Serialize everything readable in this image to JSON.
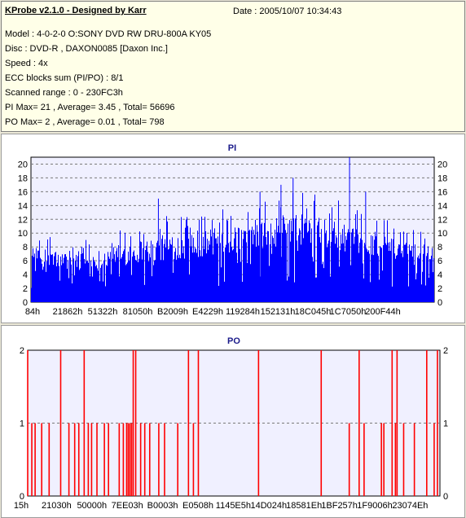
{
  "header": {
    "app_title": "KProbe v2.1.0 - Designed by Karr",
    "date": "Date : 2005/10/07 10:34:43",
    "lines": [
      "Model : 4-0-2-0 O:SONY    DVD RW DRU-800A  KY05",
      "Disc : DVD-R , DAXON0085 [Daxon Inc.]",
      "Speed : 4x",
      "ECC blocks sum (PI/PO) : 8/1",
      "Scanned range : 0 - 230FC3h",
      "PI Max= 21 , Average= 3.45 , Total= 56696",
      "PO Max= 2 , Average= 0.01 , Total= 798"
    ]
  },
  "colors": {
    "pi": "#0000ff",
    "po": "#ff0000",
    "plot_bg": "#f0f0ff",
    "grid": "#7a7a7a"
  },
  "chart_data": [
    {
      "type": "bar",
      "title": "PI",
      "ylim": [
        0,
        21
      ],
      "yticks": [
        0,
        2,
        4,
        6,
        8,
        10,
        12,
        14,
        16,
        18,
        20
      ],
      "xticklabels": [
        "84h",
        "21862h",
        "51322h",
        "81050h",
        "B2009h",
        "E4229h",
        "119284h",
        "152131h",
        "18C045h",
        "1C7050h",
        "200F44h"
      ],
      "grid": true,
      "summary": {
        "max": 21,
        "average": 3.45,
        "total": 56696
      },
      "envelope": [
        {
          "x": 0.0,
          "base": 5.5,
          "peak": 9
        },
        {
          "x": 0.04,
          "base": 5.0,
          "peak": 10
        },
        {
          "x": 0.1,
          "base": 4.5,
          "peak": 9
        },
        {
          "x": 0.18,
          "base": 5.0,
          "peak": 10
        },
        {
          "x": 0.26,
          "base": 5.5,
          "peak": 12
        },
        {
          "x": 0.34,
          "base": 6.0,
          "peak": 13
        },
        {
          "x": 0.42,
          "base": 6.5,
          "peak": 14
        },
        {
          "x": 0.5,
          "base": 7.0,
          "peak": 14
        },
        {
          "x": 0.58,
          "base": 7.5,
          "peak": 15
        },
        {
          "x": 0.64,
          "base": 8.5,
          "peak": 17
        },
        {
          "x": 0.7,
          "base": 8.0,
          "peak": 16
        },
        {
          "x": 0.76,
          "base": 7.5,
          "peak": 15
        },
        {
          "x": 0.82,
          "base": 7.0,
          "peak": 13
        },
        {
          "x": 0.88,
          "base": 6.5,
          "peak": 12
        },
        {
          "x": 0.94,
          "base": 6.5,
          "peak": 11
        },
        {
          "x": 1.0,
          "base": 6.0,
          "peak": 10
        }
      ],
      "spikes": [
        {
          "x": 0.316,
          "value": 15
        },
        {
          "x": 0.568,
          "value": 16
        },
        {
          "x": 0.62,
          "value": 17
        },
        {
          "x": 0.65,
          "value": 18
        },
        {
          "x": 0.79,
          "value": 21
        },
        {
          "x": 0.83,
          "value": 16
        }
      ]
    },
    {
      "type": "bar",
      "title": "PO",
      "ylim": [
        0,
        2
      ],
      "yticks": [
        0,
        1,
        2
      ],
      "xticklabels": [
        "15h",
        "21030h",
        "50000h",
        "7EE03h",
        "B0003h",
        "E0508h",
        "1145E5h",
        "14D024h",
        "18581Eh",
        "1BF257h",
        "1F9006h",
        "23074Eh"
      ],
      "grid": true,
      "summary": {
        "max": 2,
        "average": 0.01,
        "total": 798
      },
      "spikes": [
        {
          "x": 0.0,
          "value": 2
        },
        {
          "x": 0.01,
          "value": 1
        },
        {
          "x": 0.018,
          "value": 1
        },
        {
          "x": 0.034,
          "value": 1
        },
        {
          "x": 0.052,
          "value": 1
        },
        {
          "x": 0.08,
          "value": 2
        },
        {
          "x": 0.1,
          "value": 1
        },
        {
          "x": 0.114,
          "value": 1
        },
        {
          "x": 0.124,
          "value": 1
        },
        {
          "x": 0.137,
          "value": 2
        },
        {
          "x": 0.147,
          "value": 1
        },
        {
          "x": 0.155,
          "value": 1
        },
        {
          "x": 0.168,
          "value": 1
        },
        {
          "x": 0.186,
          "value": 1
        },
        {
          "x": 0.196,
          "value": 1
        },
        {
          "x": 0.222,
          "value": 1
        },
        {
          "x": 0.232,
          "value": 1
        },
        {
          "x": 0.24,
          "value": 1
        },
        {
          "x": 0.244,
          "value": 1
        },
        {
          "x": 0.248,
          "value": 1
        },
        {
          "x": 0.252,
          "value": 1
        },
        {
          "x": 0.256,
          "value": 2
        },
        {
          "x": 0.262,
          "value": 2
        },
        {
          "x": 0.274,
          "value": 1
        },
        {
          "x": 0.284,
          "value": 1
        },
        {
          "x": 0.296,
          "value": 1
        },
        {
          "x": 0.318,
          "value": 1
        },
        {
          "x": 0.332,
          "value": 1
        },
        {
          "x": 0.364,
          "value": 1
        },
        {
          "x": 0.39,
          "value": 2
        },
        {
          "x": 0.402,
          "value": 1
        },
        {
          "x": 0.414,
          "value": 2
        },
        {
          "x": 0.56,
          "value": 2
        },
        {
          "x": 0.712,
          "value": 2
        },
        {
          "x": 0.78,
          "value": 1
        },
        {
          "x": 0.804,
          "value": 2
        },
        {
          "x": 0.816,
          "value": 1
        },
        {
          "x": 0.858,
          "value": 1
        },
        {
          "x": 0.864,
          "value": 1
        },
        {
          "x": 0.884,
          "value": 2
        },
        {
          "x": 0.892,
          "value": 1
        },
        {
          "x": 0.896,
          "value": 2
        },
        {
          "x": 0.912,
          "value": 1
        },
        {
          "x": 0.938,
          "value": 1
        },
        {
          "x": 0.968,
          "value": 2
        },
        {
          "x": 0.986,
          "value": 1
        },
        {
          "x": 0.994,
          "value": 2
        }
      ]
    }
  ]
}
